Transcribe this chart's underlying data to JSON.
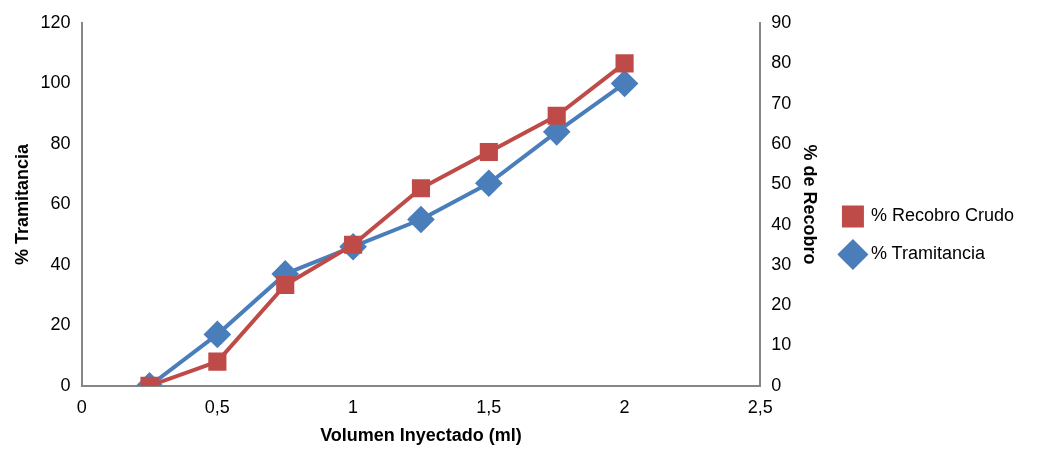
{
  "chart_data": {
    "type": "line",
    "xlabel": "Volumen Inyectado (ml)",
    "ylabel": "% Tramitancia",
    "y2label": "% de Recobro",
    "x": [
      0.25,
      0.5,
      0.75,
      1,
      1.25,
      1.5,
      1.75,
      2
    ],
    "series": [
      {
        "name": "% Tramitancia",
        "color": "#4a7ebb",
        "marker": "diamond",
        "values": [
          0,
          17,
          37,
          46,
          55,
          67,
          84,
          100
        ]
      },
      {
        "name": "% Recobro Crudo",
        "color": "#be4b48",
        "marker": "square",
        "axis": "y2",
        "values": [
          0,
          6,
          25,
          35,
          49,
          58,
          67,
          80
        ]
      }
    ],
    "xlim": [
      0,
      2.5
    ],
    "xticks": [
      0,
      {
        "value": 0.5,
        "label": "0,5"
      },
      1,
      {
        "value": 1.5,
        "label": "1,5"
      },
      2,
      {
        "value": 2.5,
        "label": "2,5"
      }
    ],
    "ylim": [
      0,
      120
    ],
    "yticks": [
      0,
      20,
      40,
      60,
      80,
      100,
      120
    ],
    "y2lim": [
      0,
      90
    ],
    "y2ticks": [
      0,
      10,
      20,
      30,
      40,
      50,
      60,
      70,
      80,
      90
    ],
    "grid": false,
    "legend": "right",
    "line_style": "solid"
  }
}
